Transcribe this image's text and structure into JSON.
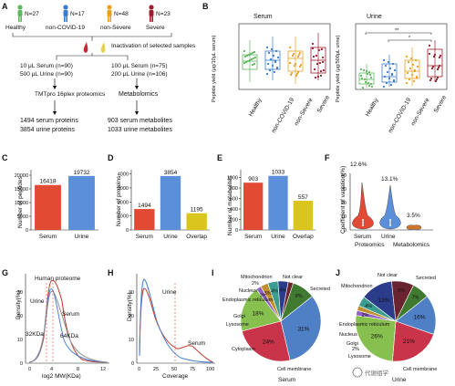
{
  "panelA": {
    "letter": "A",
    "groups": [
      {
        "name": "Healthy",
        "n": "N=27",
        "color": "#5cb85c"
      },
      {
        "name": "non-COVID-19",
        "n": "N=17",
        "color": "#3a7cc7"
      },
      {
        "name": "non-Severe",
        "n": "N=48",
        "color": "#e8a020"
      },
      {
        "name": "Severe",
        "n": "N=23",
        "color": "#9b1c2c"
      }
    ],
    "inactivation": "Inactivation of selected samples",
    "left_serum": "10 μL Serum (n=90)",
    "left_urine": "500 μL Urine (n=90)",
    "right_serum": "100 μL Serum (n=75)",
    "right_urine": "200 μL Urine (n=106)",
    "tmt": "TMTpro 16plex proteomics",
    "metabolomics": "Metabolomics",
    "serum_proteins": "1494 serum proteins",
    "urine_proteins": "3854 urine proteins",
    "serum_metabolites": "903 serum metabolites",
    "urine_metabolites": "1033 urine metabolites"
  },
  "panelB": {
    "letter": "B",
    "serum_title": "Serum",
    "urine_title": "Urine",
    "serum_ylabel": "Peptide yield (μg/10μL serum)",
    "urine_ylabel": "Peptide yield (μg/500μL urine)",
    "categories": [
      "Healthy",
      "non-COVID-19",
      "non-Severe",
      "Severe"
    ],
    "sig1": "**",
    "sig2": "*"
  },
  "panelC": {
    "letter": "C",
    "ylabel": "Number of peptides",
    "yticks": [
      "0",
      "5000",
      "10000",
      "15000",
      "20000"
    ]
  },
  "panelD": {
    "letter": "D",
    "ylabel": "Number of proteins",
    "yticks": [
      "0",
      "1000",
      "2000",
      "3000",
      "4000"
    ]
  },
  "panelE": {
    "letter": "E",
    "ylabel": "Number of metabolites",
    "yticks": [
      "0",
      "200",
      "400",
      "600",
      "800",
      "1000"
    ]
  },
  "panelF": {
    "letter": "F",
    "ylabel": "Coefficient of variation(%)",
    "yticks": [
      "0",
      "10",
      "20",
      "30",
      "40"
    ],
    "labels": [
      "12.6%",
      "13.1%",
      "3.5%"
    ],
    "xcats": [
      "Serum",
      "Urine"
    ],
    "group1": "Proteomics",
    "group2": "Metabolomics"
  },
  "panelG": {
    "letter": "G",
    "title": "Human proteome",
    "urine": "Urine",
    "serum": "Serum",
    "ann1": "32KDa",
    "ann2": "64KDa",
    "xlabel": "log2 MW(KDa)",
    "ylabel": "Density(%)",
    "xticks": [
      "0",
      "4",
      "8",
      "12"
    ],
    "yticks": [
      "0",
      "10",
      "20",
      "30"
    ]
  },
  "panelH": {
    "letter": "H",
    "urine": "Urine",
    "serum": "Serum",
    "xlabel": "Coverage",
    "ylabel": "Density(%)",
    "xticks": [
      "0",
      "25",
      "50",
      "75",
      "100"
    ],
    "yticks": [
      "0",
      "10",
      "20",
      "30"
    ]
  },
  "panelI": {
    "letter": "I",
    "caption": "Serum",
    "labels": {
      "mito": "Mitochondrion",
      "mito_pct": "2%",
      "notclear": "Not clear",
      "nucleus": "Nucleus",
      "er": "Endoplasmic reticulum",
      "golgi": "Golgi",
      "lysosome": "Lysosome",
      "secreted": "Secreted",
      "cytoplasm": "Cytoplasm",
      "membrane": "Cell membrane"
    },
    "pcts": {
      "secreted": "31%",
      "membrane": "24%",
      "cytoplasm": "18%",
      "other": "9%",
      "nucleus": "4%",
      "er": "4%",
      "golgi": "3%",
      "lyso": "2%"
    }
  },
  "panelJ": {
    "letter": "J",
    "caption": "Urine",
    "labels": {
      "notclear": "Not clear",
      "mito": "Mitochondrion",
      "secreted": "Secreted",
      "er": "Endoplasmic reticulum",
      "nucleus": "Nucleus",
      "golgi": "Golgi",
      "golgi_pct": "2%",
      "lysosome": "Lysosome",
      "membrane": "Cell membrane"
    },
    "pcts": {
      "secreted": "16%",
      "membrane": "21%",
      "cytoplasm": "26%",
      "nucleus": "13%",
      "er": "4%",
      "mito": "9%",
      "notclear": "7%",
      "lyso": "2%"
    }
  },
  "watermark": "代谢组学",
  "chart_data": [
    {
      "panel": "C",
      "type": "bar",
      "categories": [
        "Serum",
        "Urine"
      ],
      "values": [
        16418,
        19732
      ],
      "ylabel": "Number of peptides",
      "ylim": [
        0,
        22000
      ],
      "colors": [
        "#e34a33",
        "#5b8fd9"
      ]
    },
    {
      "panel": "D",
      "type": "bar",
      "categories": [
        "Serum",
        "Urine",
        "Overlap"
      ],
      "values": [
        1494,
        3854,
        1195
      ],
      "ylabel": "Number of proteins",
      "ylim": [
        0,
        4300
      ],
      "colors": [
        "#e34a33",
        "#5b8fd9",
        "#d9c51c"
      ]
    },
    {
      "panel": "E",
      "type": "bar",
      "categories": [
        "Serum",
        "Urine",
        "Overlap"
      ],
      "values": [
        903,
        1033,
        557
      ],
      "ylabel": "Number of metabolites",
      "ylim": [
        0,
        1150
      ],
      "colors": [
        "#e34a33",
        "#5b8fd9",
        "#d9c51c"
      ]
    },
    {
      "panel": "I",
      "type": "pie",
      "title": "Serum",
      "labels": [
        "Secreted",
        "Cell membrane",
        "Cytoplasm",
        "Lysosome",
        "Golgi",
        "Endoplasmic reticulum",
        "Nucleus",
        "Mitochondrion",
        "Not clear"
      ],
      "values": [
        31,
        24,
        18,
        2,
        3,
        4,
        4,
        2,
        9
      ],
      "colors": [
        "#4f7fc4",
        "#c9344a",
        "#88c050",
        "#8f5fc4",
        "#c09030",
        "#3a9d8f",
        "#2b3d8a",
        "#6a2430",
        "#3f7a30"
      ]
    },
    {
      "panel": "J",
      "type": "pie",
      "title": "Urine",
      "labels": [
        "Secreted",
        "Cell membrane",
        "Cytoplasm",
        "Lysosome",
        "Golgi",
        "Endoplasmic reticulum",
        "Nucleus",
        "Mitochondrion",
        "Not clear"
      ],
      "values": [
        16,
        21,
        26,
        2,
        2,
        4,
        13,
        9,
        7
      ],
      "colors": [
        "#4f7fc4",
        "#c9344a",
        "#88c050",
        "#8f5fc4",
        "#c09030",
        "#3a9d8f",
        "#2b3d8a",
        "#6a2430",
        "#3f7a30"
      ]
    }
  ]
}
